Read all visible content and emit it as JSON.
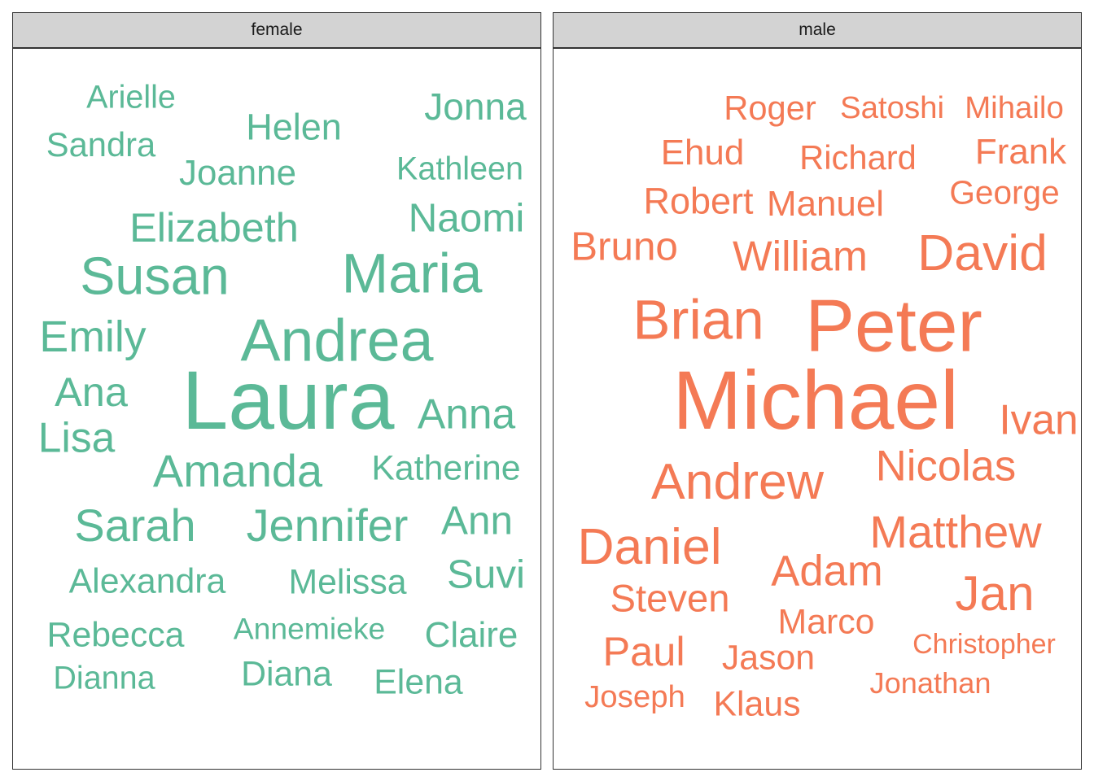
{
  "chart_data": {
    "type": "wordcloud",
    "colors": {
      "female": "#5bb997",
      "male": "#f47a55"
    },
    "facets": [
      {
        "label": "female",
        "words": [
          {
            "text": "Laura",
            "freq": 100
          },
          {
            "text": "Andrea",
            "freq": 74
          },
          {
            "text": "Maria",
            "freq": 70
          },
          {
            "text": "Susan",
            "freq": 66
          },
          {
            "text": "Amanda",
            "freq": 58
          },
          {
            "text": "Jennifer",
            "freq": 58
          },
          {
            "text": "Sarah",
            "freq": 58
          },
          {
            "text": "Emily",
            "freq": 56
          },
          {
            "text": "Lisa",
            "freq": 54
          },
          {
            "text": "Ana",
            "freq": 53
          },
          {
            "text": "Anna",
            "freq": 54
          },
          {
            "text": "Elizabeth",
            "freq": 53
          },
          {
            "text": "Naomi",
            "freq": 52
          },
          {
            "text": "Ann",
            "freq": 52
          },
          {
            "text": "Suvi",
            "freq": 52
          },
          {
            "text": "Jonna",
            "freq": 49
          },
          {
            "text": "Helen",
            "freq": 48
          },
          {
            "text": "Joanne",
            "freq": 47
          },
          {
            "text": "Claire",
            "freq": 47
          },
          {
            "text": "Katherine",
            "freq": 46
          },
          {
            "text": "Alexandra",
            "freq": 46
          },
          {
            "text": "Melissa",
            "freq": 46
          },
          {
            "text": "Rebecca",
            "freq": 46
          },
          {
            "text": "Diana",
            "freq": 46
          },
          {
            "text": "Elena",
            "freq": 46
          },
          {
            "text": "Sandra",
            "freq": 45
          },
          {
            "text": "Kathleen",
            "freq": 43
          },
          {
            "text": "Arielle",
            "freq": 43
          },
          {
            "text": "Dianna",
            "freq": 43
          },
          {
            "text": "Annemieke",
            "freq": 41
          }
        ]
      },
      {
        "label": "male",
        "words": [
          {
            "text": "Michael",
            "freq": 100
          },
          {
            "text": "Peter",
            "freq": 90
          },
          {
            "text": "Brian",
            "freq": 70
          },
          {
            "text": "Andrew",
            "freq": 64
          },
          {
            "text": "Daniel",
            "freq": 64
          },
          {
            "text": "David",
            "freq": 64
          },
          {
            "text": "Jan",
            "freq": 62
          },
          {
            "text": "Matthew",
            "freq": 58
          },
          {
            "text": "Nicolas",
            "freq": 55
          },
          {
            "text": "Adam",
            "freq": 55
          },
          {
            "text": "Ivan",
            "freq": 54
          },
          {
            "text": "William",
            "freq": 54
          },
          {
            "text": "Paul",
            "freq": 53
          },
          {
            "text": "Bruno",
            "freq": 52
          },
          {
            "text": "Steven",
            "freq": 50
          },
          {
            "text": "Robert",
            "freq": 48
          },
          {
            "text": "Ehud",
            "freq": 47
          },
          {
            "text": "Manuel",
            "freq": 47
          },
          {
            "text": "Frank",
            "freq": 47
          },
          {
            "text": "Marco",
            "freq": 46
          },
          {
            "text": "Jason",
            "freq": 46
          },
          {
            "text": "Klaus",
            "freq": 46
          },
          {
            "text": "Richard",
            "freq": 45
          },
          {
            "text": "Roger",
            "freq": 45
          },
          {
            "text": "George",
            "freq": 44
          },
          {
            "text": "Satoshi",
            "freq": 42
          },
          {
            "text": "Mihailo",
            "freq": 42
          },
          {
            "text": "Joseph",
            "freq": 42
          },
          {
            "text": "Jonathan",
            "freq": 40
          },
          {
            "text": "Christopher",
            "freq": 38
          }
        ]
      }
    ]
  }
}
